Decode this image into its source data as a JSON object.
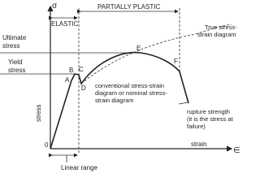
{
  "sigma": "σ",
  "epsilon": "∈",
  "origin": "0",
  "elastic": "ELASTIC",
  "partially_plastic": "PARTIALLY PLASTIC",
  "ultimate_stress": [
    "Ultimate",
    "stress"
  ],
  "yield_stress": [
    "Yield",
    "stress"
  ],
  "true_diagram": [
    "True stress-",
    "strain diagram"
  ],
  "points": [
    "A",
    "B",
    "C",
    "D",
    "E",
    "F"
  ],
  "conventional": [
    "conventional stress-strain",
    "diagram or nominal stress-",
    "strain diagram"
  ],
  "rupture": [
    "rupture strength",
    "(it is the stress at",
    "failure)"
  ],
  "stress_axis": "stress",
  "strain_axis": "strain",
  "linear_range": "Linear range"
}
